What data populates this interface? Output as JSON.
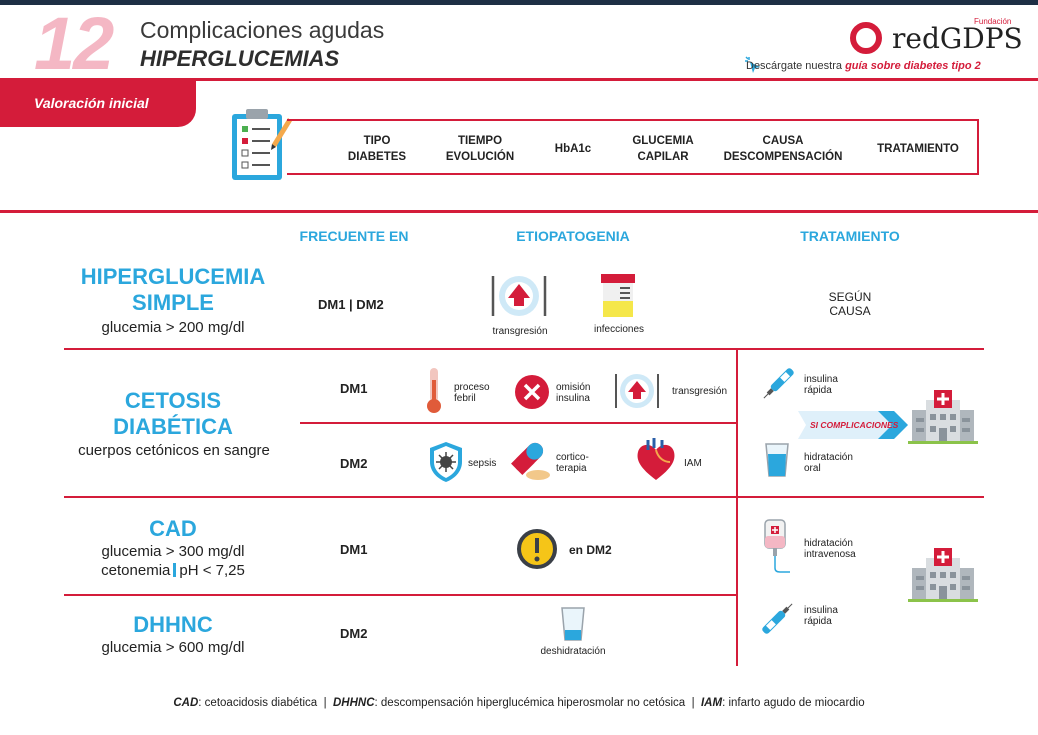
{
  "header": {
    "number": "12",
    "title_line1": "Complicaciones agudas",
    "title_line2": "HIPERGLUCEMIAS",
    "logo_text": "redGDPS",
    "logo_fundacion": "Fundación",
    "download_prefix": "Descárgate nuestra",
    "download_link": "guía sobre diabetes tipo 2"
  },
  "valoracion": {
    "tab_label": "Valoración inicial",
    "criteria": [
      {
        "line1": "TIPO",
        "line2": "DIABETES"
      },
      {
        "line1": "TIEMPO",
        "line2": "EVOLUCIÓN"
      },
      {
        "line1": "HbA1c",
        "line2": ""
      },
      {
        "line1": "GLUCEMIA",
        "line2": "CAPILAR"
      },
      {
        "line1": "CAUSA",
        "line2": "DESCOMPENSACIÓN"
      },
      {
        "line1": "TRATAMIENTO",
        "line2": ""
      }
    ]
  },
  "columns": {
    "frecuente": "FRECUENTE EN",
    "etiopatogenia": "ETIOPATOGENIA",
    "tratamiento": "TRATAMIENTO"
  },
  "rows": {
    "hiperglucemia": {
      "title1": "HIPERGLUCEMIA",
      "title2": "SIMPLE",
      "sub": "glucemia > 200 mg/dl",
      "dm": "DM1 | DM2",
      "etio": [
        "transgresión",
        "infecciones"
      ],
      "trat1": "SEGÚN",
      "trat2": "CAUSA"
    },
    "cetosis": {
      "title1": "CETOSIS",
      "title2": "DIABÉTICA",
      "sub": "cuerpos cetónicos en sangre",
      "dm1": "DM1",
      "dm2": "DM2",
      "dm1_causes": [
        {
          "l1": "proceso",
          "l2": "febril"
        },
        {
          "l1": "omisión",
          "l2": "insulina"
        },
        {
          "l1": "transgresión",
          "l2": ""
        }
      ],
      "dm2_causes": [
        {
          "l1": "sepsis",
          "l2": ""
        },
        {
          "l1": "cortico-",
          "l2": "terapia"
        },
        {
          "l1": "IAM",
          "l2": ""
        }
      ],
      "trat": [
        {
          "l1": "insulina",
          "l2": "rápida"
        },
        {
          "l1": "hidratación",
          "l2": "oral"
        }
      ],
      "ribbon": "SI COMPLICACIONES"
    },
    "cad": {
      "title": "CAD",
      "sub1": "glucemia > 300 mg/dl",
      "sub2a": "cetonemia",
      "sub2b": "pH < 7,25",
      "dm": "DM1",
      "etio": "en DM2",
      "trat": [
        {
          "l1": "hidratación",
          "l2": "intravenosa"
        },
        {
          "l1": "insulina",
          "l2": "rápida"
        }
      ]
    },
    "dhhnc": {
      "title": "DHHNC",
      "sub": "glucemia > 600 mg/dl",
      "dm": "DM2",
      "etio": "deshidratación"
    }
  },
  "footer": {
    "cad_abbr": "CAD",
    "cad_def": ": cetoacidosis diabética",
    "dhhnc_abbr": "DHHNC",
    "dhhnc_def": ": descompensación hiperglucémica hiperosmolar no cetósica",
    "iam_abbr": "IAM",
    "iam_def": ": infarto agudo de miocardio",
    "separator": "|"
  },
  "colors": {
    "red": "#d41c3a",
    "blue": "#2ba7dd",
    "pink": "#f4b7c4",
    "navy": "#1e2f45"
  },
  "icons": [
    "clipboard-icon",
    "plate-icon",
    "urine-sample-icon",
    "thermometer-icon",
    "cross-circle-icon",
    "shield-virus-icon",
    "pill-icon",
    "heart-icon",
    "insulin-pen-icon",
    "water-glass-icon",
    "hospital-icon",
    "warning-icon",
    "iv-bag-icon",
    "empty-glass-icon",
    "cursor-icon"
  ]
}
